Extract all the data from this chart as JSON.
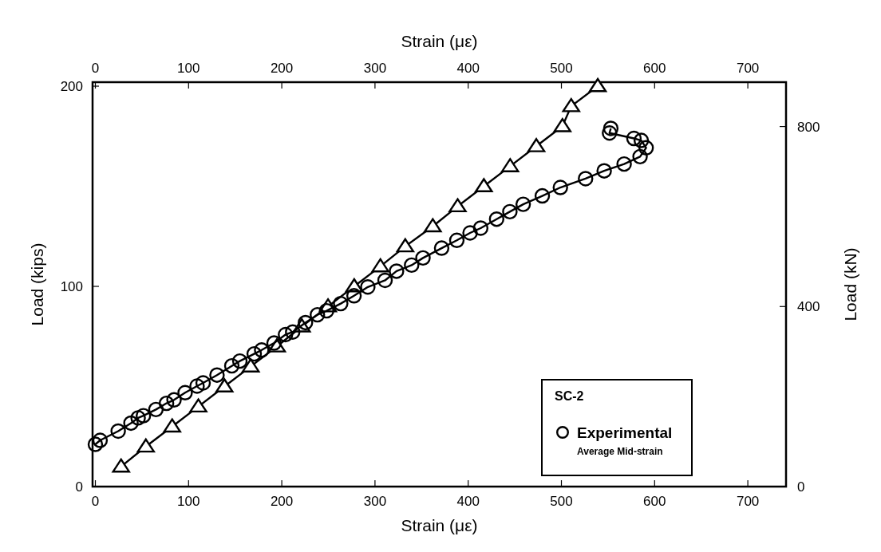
{
  "chart_data": {
    "type": "line",
    "xlabel": "Strain (με)",
    "x2label": "Strain (με)",
    "ylabel": "Load (kips)",
    "y2label": "Load (kN)",
    "xlim": [
      -3,
      741
    ],
    "xticks": [
      0,
      100,
      200,
      300,
      400,
      500,
      600,
      700
    ],
    "x2lim": [
      -3,
      741
    ],
    "x2ticks": [
      0,
      100,
      200,
      300,
      400,
      500,
      600,
      700
    ],
    "ylim": [
      0,
      202
    ],
    "yticks": [
      0,
      100,
      200
    ],
    "y2lim": [
      0,
      898.5
    ],
    "y2ticks": [
      0,
      400,
      800
    ],
    "legend": "bottom right",
    "legend_title": "SC-2",
    "annotations": [
      "Average Mid-strain"
    ],
    "grid": false,
    "line_style": "solid",
    "series": [
      {
        "color": "#000000",
        "marker": "triangle",
        "x": [
          27.6,
          54.2,
          82.4,
          110.5,
          138.5,
          166.7,
          194.8,
          221.5,
          249.6,
          277.7,
          305.8,
          332.5,
          362,
          388.7,
          416.8,
          445,
          473.1,
          501.1,
          510.5,
          539
        ],
        "values": [
          10,
          20,
          30,
          40,
          50,
          60,
          70,
          80,
          90,
          100,
          110,
          120,
          130,
          140,
          150,
          160,
          170,
          180,
          190,
          200
        ]
      },
      {
        "name": "Experimental",
        "color": "#000000",
        "marker": "circle",
        "x": [
          0,
          5.1,
          24.5,
          38.2,
          45.9,
          51.5,
          65,
          76.3,
          84.4,
          96.3,
          109.1,
          115.6,
          130.5,
          146.4,
          155,
          170.4,
          178.4,
          191.7,
          204,
          211.7,
          225.4,
          238.2,
          248.1,
          263.2,
          277.5,
          292.3,
          310.8,
          323.1,
          339.3,
          351.5,
          371.5,
          387.8,
          402,
          413.4,
          430.5,
          444.7,
          459,
          479.5,
          498.9,
          525.9,
          545.9,
          567.3,
          584.4,
          590.9,
          585.7,
          577.8,
          551.6,
          553
        ],
        "values": [
          21.1,
          23.1,
          27.7,
          31.7,
          34.3,
          35.4,
          38.5,
          41.6,
          43.3,
          46.9,
          50.2,
          51.8,
          55.7,
          60.3,
          62.7,
          66.3,
          68.2,
          71.7,
          75.9,
          77.2,
          81.9,
          85.8,
          87.8,
          91.4,
          95.3,
          99.7,
          103,
          107.6,
          110.6,
          114.2,
          119.1,
          123,
          126.7,
          129.1,
          133.6,
          137.3,
          141,
          145.2,
          149.4,
          153.8,
          157.7,
          161.1,
          164.8,
          169.2,
          172.9,
          173.9,
          176.6,
          178.9
        ]
      }
    ]
  }
}
